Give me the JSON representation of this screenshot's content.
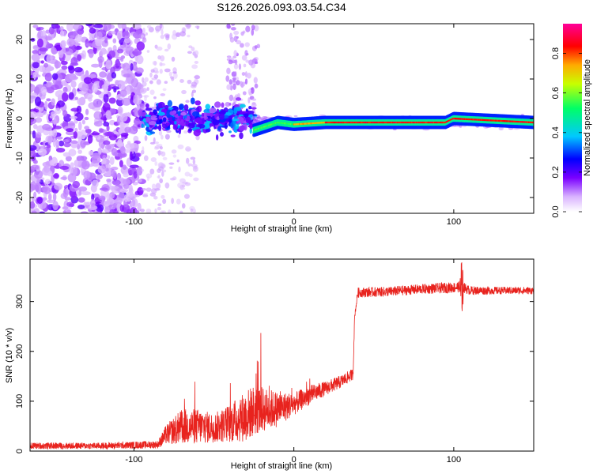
{
  "title": "S126.2026.093.03.54.C34",
  "chart_data": [
    {
      "type": "heatmap",
      "xlabel": "Height of straight line (km)",
      "ylabel": "Frequency (Hz)",
      "xlim": [
        -165,
        150
      ],
      "ylim": [
        -24,
        24
      ],
      "xticks": [
        -100,
        0,
        100
      ],
      "yticks": [
        -20,
        -10,
        0,
        10,
        20
      ],
      "xtick_labels": [
        "-100",
        "0",
        "100"
      ],
      "ytick_labels": [
        "-20",
        "-10",
        "0",
        "10",
        "20"
      ],
      "colorbar": {
        "label": "Normalized spectral amplitude",
        "range": [
          0,
          0.95
        ],
        "ticks": [
          0.0,
          0.2,
          0.4,
          0.6,
          0.8
        ],
        "tick_labels": [
          "0.0",
          "0.2",
          "0.4",
          "0.6",
          "0.8"
        ],
        "colormap": [
          "#ffffff",
          "#d9b3ff",
          "#7a00ff",
          "#0000ff",
          "#00c8ff",
          "#00ff66",
          "#ffff00",
          "#ff8800",
          "#ff0000",
          "#ff00aa"
        ]
      },
      "description_points": {
        "noise_region_x": [
          -165,
          -95
        ],
        "transition_region_x": [
          -95,
          -25
        ],
        "main_line": {
          "x": [
            -25,
            -10,
            0,
            20,
            60,
            95,
            100,
            150
          ],
          "freq": [
            -3,
            -1,
            -1.5,
            -1,
            -1,
            -1,
            0,
            -1
          ]
        }
      }
    },
    {
      "type": "line",
      "xlabel": "Height of straight line (km)",
      "ylabel": "SNR (10 * v/v)",
      "xlim": [
        -165,
        150
      ],
      "ylim": [
        0,
        385
      ],
      "xticks": [
        -100,
        0,
        100
      ],
      "yticks": [
        0,
        100,
        200,
        300
      ],
      "xtick_labels": [
        "-100",
        "0",
        "100"
      ],
      "ytick_labels": [
        "0",
        "100",
        "200",
        "300"
      ],
      "color": "#e8231e",
      "series": [
        {
          "name": "SNR",
          "x": [
            -165,
            -120,
            -85,
            -80,
            -70,
            -60,
            -50,
            -40,
            -30,
            -25,
            -20,
            -10,
            0,
            10,
            20,
            30,
            37,
            38,
            40,
            60,
            80,
            100,
            105,
            110,
            130,
            150
          ],
          "base": [
            8,
            8,
            10,
            25,
            35,
            35,
            35,
            40,
            50,
            60,
            65,
            70,
            85,
            105,
            120,
            135,
            150,
            270,
            318,
            320,
            325,
            328,
            330,
            322,
            322,
            322
          ],
          "amp": [
            10,
            10,
            12,
            30,
            55,
            55,
            45,
            60,
            80,
            80,
            70,
            55,
            35,
            30,
            22,
            20,
            18,
            10,
            20,
            20,
            20,
            22,
            22,
            18,
            15,
            15
          ]
        }
      ]
    }
  ]
}
